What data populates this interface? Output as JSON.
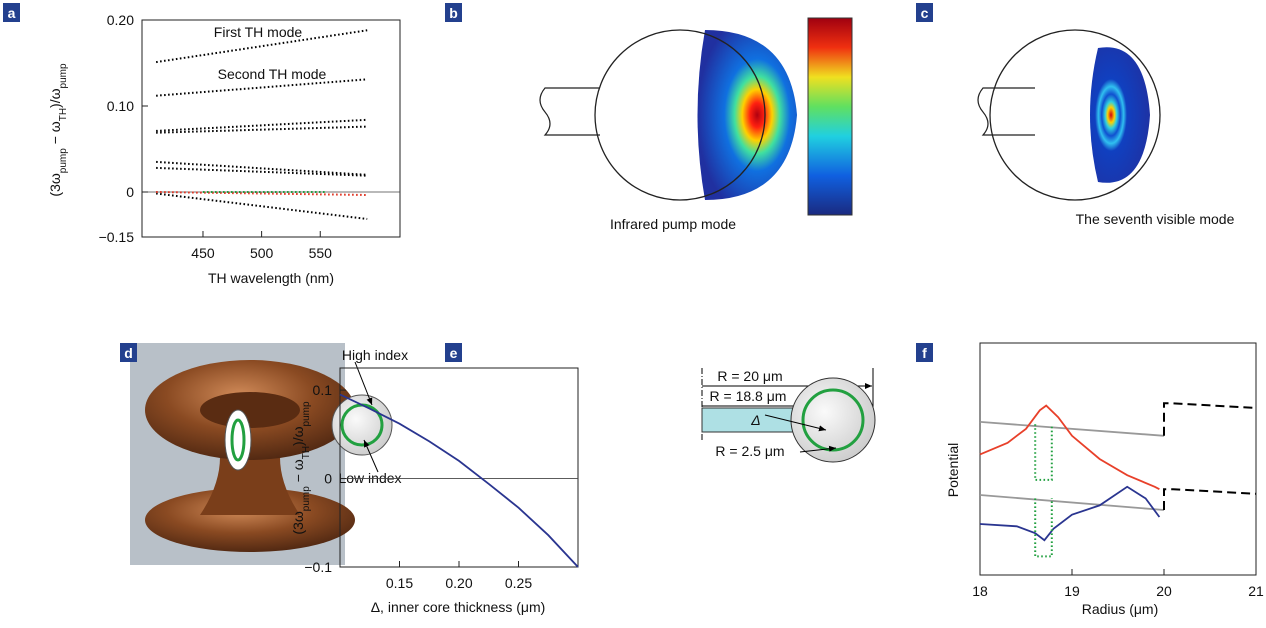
{
  "chart_data": [
    {
      "panel": "a",
      "type": "line",
      "xlabel": "TH wavelength (nm)",
      "ylabel": [
        "(3ω",
        "pump",
        " − ω",
        "TH",
        ")/ω",
        "pump"
      ],
      "annotations": [
        "First TH mode",
        "Second TH mode"
      ],
      "xlim": [
        398,
        618
      ],
      "ylim": [
        -0.15,
        0.2
      ],
      "xticks": [
        450,
        500,
        550
      ],
      "yticks": [
        {
          "value": 0.2,
          "label": "0.20"
        },
        {
          "value": 0.1,
          "label": "0.10"
        },
        0,
        {
          "value": -0.15,
          "label": "−0.15"
        }
      ],
      "series": [
        {
          "color": "#000000",
          "style": "dotted",
          "x": [
            410,
            590
          ],
          "values": [
            0.151,
            0.188
          ]
        },
        {
          "color": "#000000",
          "style": "dotted",
          "x": [
            410,
            590
          ],
          "values": [
            0.112,
            0.131
          ]
        },
        {
          "color": "#000000",
          "style": "dotted",
          "x": [
            410,
            590
          ],
          "values": [
            0.071,
            0.084
          ]
        },
        {
          "color": "#000000",
          "style": "dotted",
          "x": [
            410,
            590
          ],
          "values": [
            0.069,
            0.076
          ]
        },
        {
          "color": "#000000",
          "style": "dotted",
          "x": [
            410,
            590
          ],
          "values": [
            0.035,
            0.02
          ]
        },
        {
          "color": "#000000",
          "style": "dotted",
          "x": [
            410,
            590
          ],
          "values": [
            0.028,
            0.019
          ]
        },
        {
          "color": "#000000",
          "style": "dotted",
          "x": [
            410,
            590
          ],
          "values": [
            -0.005,
            -0.09
          ]
        },
        {
          "color": "#e0301e",
          "style": "dotted",
          "x": [
            410,
            590
          ],
          "values": [
            0,
            -0.01
          ]
        },
        {
          "color": "#22a040",
          "style": "dotted",
          "x": [
            450,
            555
          ],
          "values": [
            0,
            0
          ]
        }
      ]
    },
    {
      "panel": "e",
      "type": "line",
      "xlabel": "Δ, inner core thickness (μm)",
      "ylabel": [
        "(3ω",
        "pump",
        " − ω",
        "TH",
        ")/ω",
        "pump"
      ],
      "annotations": [
        "R = 20 μm",
        "R = 18.8 μm",
        "Δ",
        "R = 2.5 μm"
      ],
      "xlim": [
        0.1,
        0.3
      ],
      "ylim": [
        -0.1,
        0.125
      ],
      "xticks": [
        0.15,
        {
          "value": 0.2,
          "label": "0.20"
        },
        0.25
      ],
      "yticks": [
        0.1,
        0,
        {
          "value": -0.1,
          "label": "−0.1"
        }
      ],
      "series": [
        {
          "color": "#2a3590",
          "style": "solid",
          "x": [
            0.1,
            0.125,
            0.15,
            0.175,
            0.2,
            0.225,
            0.25,
            0.275,
            0.3
          ],
          "values": [
            0.095,
            0.079,
            0.062,
            0.042,
            0.02,
            -0.006,
            -0.033,
            -0.064,
            -0.1
          ]
        }
      ]
    },
    {
      "panel": "f",
      "type": "line",
      "xlabel": "Radius (μm)",
      "ylabel": [
        "Potential"
      ],
      "annotations": [],
      "xlim": [
        18,
        21
      ],
      "ylim": [
        0,
        1
      ],
      "xticks": [
        18,
        19,
        20,
        21
      ],
      "yticks": [],
      "series": [
        {
          "color": "#999999",
          "style": "solid",
          "x": [
            18,
            20
          ],
          "values": [
            0.66,
            0.6
          ]
        },
        {
          "color": "#e8402a",
          "style": "solid",
          "x": [
            18,
            18.3,
            18.5,
            18.65,
            18.72,
            18.85,
            19,
            19.3,
            19.6,
            19.9,
            19.95
          ],
          "values": [
            0.52,
            0.57,
            0.63,
            0.71,
            0.73,
            0.68,
            0.6,
            0.5,
            0.43,
            0.38,
            0.37
          ]
        },
        {
          "color": "#22a040",
          "style": "dotted",
          "x": [
            18.6,
            18.6,
            18.78,
            18.78
          ],
          "values": [
            0.65,
            0.41,
            0.41,
            0.65
          ]
        },
        {
          "color": "#000000",
          "style": "dashed",
          "x": [
            20,
            20,
            20.1,
            21
          ],
          "values": [
            0.6,
            0.74,
            0.74,
            0.72
          ]
        },
        {
          "color": "#999999",
          "style": "solid",
          "x": [
            18,
            20
          ],
          "values": [
            0.345,
            0.28
          ]
        },
        {
          "color": "#2a3590",
          "style": "solid",
          "x": [
            18,
            18.4,
            18.6,
            18.7,
            18.8,
            19,
            19.3,
            19.6,
            19.8,
            19.95
          ],
          "values": [
            0.22,
            0.21,
            0.18,
            0.15,
            0.2,
            0.26,
            0.3,
            0.38,
            0.33,
            0.25
          ]
        },
        {
          "color": "#22a040",
          "style": "dotted",
          "x": [
            18.6,
            18.6,
            18.78,
            18.78
          ],
          "values": [
            0.33,
            0.08,
            0.08,
            0.33
          ]
        },
        {
          "color": "#000000",
          "style": "dashed",
          "x": [
            20,
            20,
            20.1,
            21
          ],
          "values": [
            0.28,
            0.37,
            0.37,
            0.35
          ]
        }
      ]
    }
  ],
  "figures": {
    "b": {
      "panel": "b",
      "caption": "Infrared pump mode"
    },
    "c": {
      "panel": "c",
      "caption": "The seventh visible mode"
    },
    "d": {
      "panel": "d",
      "annotations": [
        "High index",
        "Low index"
      ]
    }
  }
}
